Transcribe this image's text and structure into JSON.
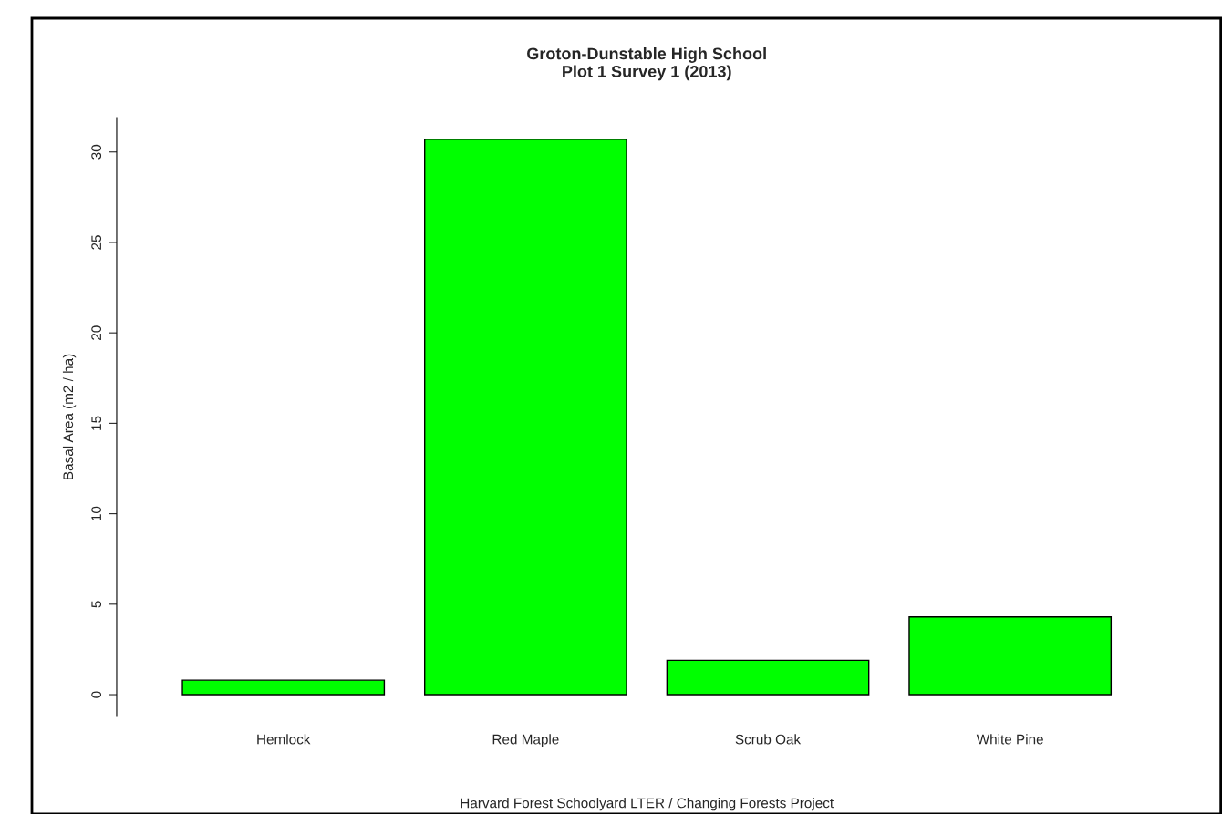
{
  "chart_data": {
    "type": "bar",
    "title": "Groton-Dunstable High School\nPlot 1 Survey 1 (2013)",
    "xlabel": "Harvard Forest Schoolyard LTER / Changing Forests Project",
    "ylabel": "Basal Area (m2 / ha)",
    "categories": [
      "Hemlock",
      "Red Maple",
      "Scrub Oak",
      "White Pine"
    ],
    "values": [
      0.8,
      30.7,
      1.9,
      4.3
    ],
    "color": "#00ff00",
    "ylim": [
      -1.2,
      31.9
    ],
    "yticks": [
      0,
      5,
      10,
      15,
      20,
      25,
      30
    ],
    "grid": false
  }
}
